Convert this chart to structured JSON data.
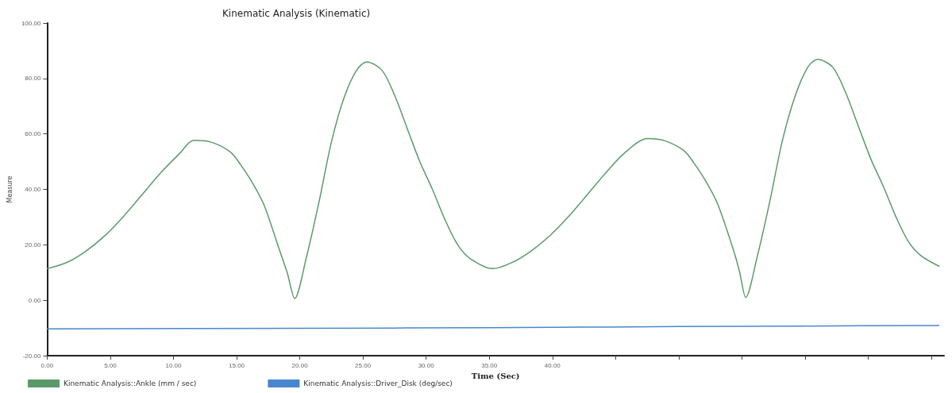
{
  "chart_data": {
    "type": "line",
    "title": "Kinematic Analysis (Kinematic)",
    "xlabel": "Time (Sec)",
    "ylabel": "Measure",
    "xlim": [
      0,
      71
    ],
    "ylim": [
      -20,
      100
    ],
    "xticks": [
      {
        "value": 0,
        "label": "0.00"
      },
      {
        "value": 5,
        "label": "5.00"
      },
      {
        "value": 10,
        "label": "10.00"
      },
      {
        "value": 15,
        "label": "15.00"
      },
      {
        "value": 20,
        "label": "20.00"
      },
      {
        "value": 25,
        "label": "25.00"
      },
      {
        "value": 30,
        "label": "30.00"
      },
      {
        "value": 35,
        "label": "35.00"
      },
      {
        "value": 40,
        "label": "40.00"
      },
      {
        "value": 45,
        "label": null
      },
      {
        "value": 50,
        "label": null
      },
      {
        "value": 55,
        "label": null
      },
      {
        "value": 60,
        "label": null
      },
      {
        "value": 65,
        "label": null
      },
      {
        "value": 70,
        "label": null
      }
    ],
    "yticks": [
      {
        "value": -20,
        "label": "-20.00"
      },
      {
        "value": 0,
        "label": "0.00"
      },
      {
        "value": 20,
        "label": "20.00"
      },
      {
        "value": 40,
        "label": "40.00"
      },
      {
        "value": 60,
        "label": "60.00"
      },
      {
        "value": 80,
        "label": "80.00"
      },
      {
        "value": 100,
        "label": "100.00"
      }
    ],
    "grid": false,
    "legend": "bottom left",
    "marker": "none",
    "line_style": "solid",
    "series": [
      {
        "name": "Kinematic Analysis::Ankle (mm / sec)",
        "color": "#5a9a6a",
        "x": [
          0,
          1.5,
          3,
          4.5,
          6,
          7.5,
          9,
          10.5,
          11.6,
          13,
          14.5,
          15.3,
          16.3,
          17.2,
          18.4,
          19,
          19.6,
          20.5,
          21.5,
          22.5,
          23.5,
          24.5,
          25.3,
          26.5,
          27.5,
          28.5,
          29.5,
          30.5,
          31.5,
          32.5,
          33.5,
          35.3,
          36.8,
          38.3,
          39.8,
          41.3,
          42.8,
          44.3,
          45.8,
          47.5,
          48.9,
          50.4,
          51.2,
          52.2,
          53.1,
          54.3,
          54.8,
          55.3,
          56.2,
          57.2,
          58.2,
          59.2,
          60.2,
          61,
          62.2,
          63.2,
          64.2,
          65.2,
          66.2,
          67.2,
          68.2,
          69.2,
          70.6
        ],
        "values": [
          11.4,
          13.5,
          17.5,
          23,
          30,
          38,
          46,
          53,
          57.7,
          57,
          53.5,
          49,
          42,
          34,
          18,
          10,
          0.6,
          15,
          35,
          57,
          73,
          83,
          86,
          83,
          74,
          62,
          50,
          40,
          29,
          20,
          15,
          11.4,
          13.6,
          17.7,
          23.3,
          30.3,
          38.3,
          46.4,
          53.5,
          58.3,
          57.5,
          54,
          49.5,
          42.5,
          34.5,
          18.5,
          10.5,
          1,
          15.5,
          35.5,
          57.5,
          73.5,
          84,
          86.9,
          84,
          75,
          63,
          51,
          41,
          30,
          21,
          16,
          12.3
        ]
      },
      {
        "name": "Kinematic Analysis::Driver_Disk (deg/sec)",
        "color": "#4a86d0",
        "x": [
          0,
          20,
          35,
          50,
          60,
          70.6
        ],
        "values": [
          -10.3,
          -10.1,
          -9.9,
          -9.5,
          -9.3,
          -9.1
        ]
      }
    ]
  }
}
